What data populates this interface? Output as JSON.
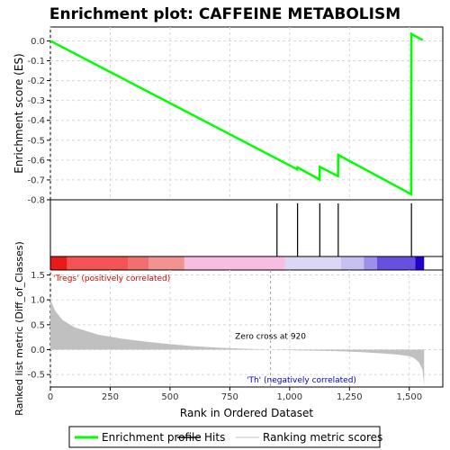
{
  "chart_data": {
    "type": "line",
    "title": "Enrichment plot: CAFFEINE METABOLISM",
    "xlabel": "Rank in Ordered Dataset",
    "es_panel": {
      "ylabel": "Enrichment score (ES)",
      "ylim": [
        -0.8,
        0.07
      ],
      "yticks": [
        "0.0",
        "-0.1",
        "-0.2",
        "-0.3",
        "-0.4",
        "-0.5",
        "-0.6",
        "-0.7",
        "-0.8"
      ],
      "ytick_values": [
        0.0,
        -0.1,
        -0.2,
        -0.3,
        -0.4,
        -0.5,
        -0.6,
        -0.7,
        -0.8
      ],
      "grid": true,
      "series": [
        {
          "name": "Enrichment profile",
          "color": "#00ff00",
          "x": [
            0,
            1032,
            1033,
            1125,
            1126,
            1202,
            1203,
            1508,
            1509,
            1556
          ],
          "y": [
            0.0,
            -0.647,
            -0.637,
            -0.698,
            -0.634,
            -0.681,
            -0.574,
            -0.772,
            0.035,
            0.004
          ]
        }
      ]
    },
    "hits": {
      "name": "Hits",
      "color": "#000000",
      "x": [
        947,
        1033,
        1126,
        1203,
        1509
      ]
    },
    "rank_panel": {
      "ylabel": "Ranked list metric (Diff_of_Classes)",
      "ylim": [
        -0.75,
        1.6
      ],
      "yticks": [
        "1.5",
        "1.0",
        "0.5",
        "0.0",
        "-0.5"
      ],
      "ytick_values": [
        1.5,
        1.0,
        0.5,
        0.0,
        -0.5
      ],
      "series_name": "Ranking metric scores",
      "color": "#c0c0c0",
      "curve": {
        "x": [
          0,
          5,
          20,
          50,
          100,
          200,
          300,
          400,
          500,
          600,
          700,
          800,
          900,
          920,
          1000,
          1100,
          1200,
          1300,
          1400,
          1450,
          1500,
          1520,
          1540,
          1555,
          1562
        ],
        "y": [
          1.08,
          0.95,
          0.78,
          0.6,
          0.45,
          0.3,
          0.22,
          0.16,
          0.11,
          0.07,
          0.04,
          0.02,
          0.005,
          0.0,
          -0.01,
          -0.02,
          -0.03,
          -0.05,
          -0.08,
          -0.1,
          -0.13,
          -0.17,
          -0.25,
          -0.4,
          -0.72
        ]
      },
      "zero_cross": 920,
      "zero_cross_label": "Zero cross at 920",
      "pos_label": "'Tregs' (positively correlated)",
      "neg_label": "'Th' (negatively correlated)"
    },
    "xlim": [
      0,
      1640
    ],
    "xticks": [
      "0",
      "250",
      "500",
      "750",
      "1,000",
      "1,250",
      "1,500"
    ],
    "xtick_values": [
      0,
      250,
      500,
      750,
      1000,
      1250,
      1500
    ],
    "n_genes": 1562,
    "colorbar": [
      {
        "from": 0,
        "to": 70,
        "color": "#e81a1a"
      },
      {
        "from": 70,
        "to": 325,
        "color": "#f55454"
      },
      {
        "from": 325,
        "to": 410,
        "color": "#f26f6f"
      },
      {
        "from": 410,
        "to": 560,
        "color": "#f49292"
      },
      {
        "from": 560,
        "to": 980,
        "color": "#f8bde0"
      },
      {
        "from": 980,
        "to": 1215,
        "color": "#dbd7f5"
      },
      {
        "from": 1215,
        "to": 1310,
        "color": "#c7c1f2"
      },
      {
        "from": 1310,
        "to": 1365,
        "color": "#9d90ea"
      },
      {
        "from": 1365,
        "to": 1525,
        "color": "#6650dd"
      },
      {
        "from": 1525,
        "to": 1562,
        "color": "#2200cc"
      }
    ],
    "legend": {
      "placement": "bottom",
      "items": [
        {
          "label": "Enrichment profile",
          "color": "#00ff00"
        },
        {
          "label": "Hits",
          "color": "#000000"
        },
        {
          "label": "Ranking metric scores",
          "color": "#c0c0c0"
        }
      ]
    }
  }
}
